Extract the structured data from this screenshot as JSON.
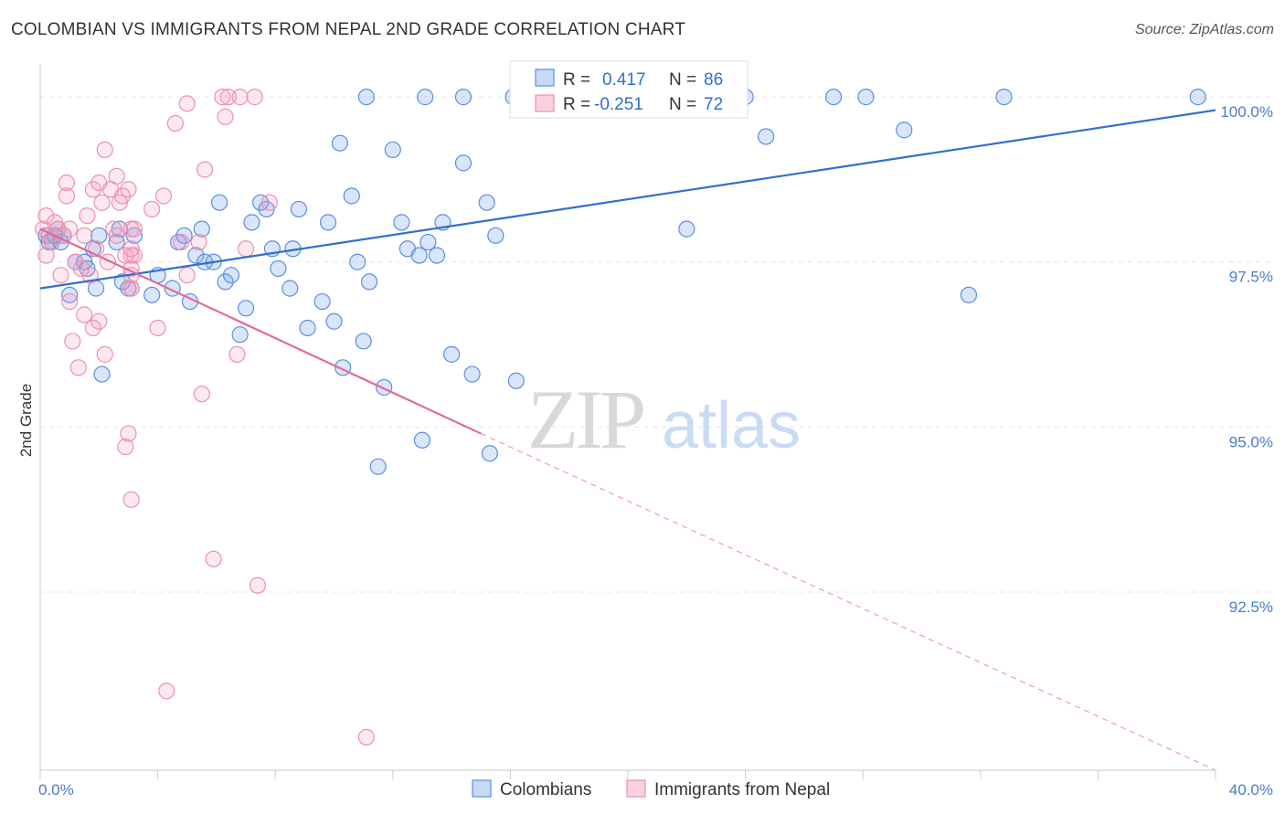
{
  "header": {
    "title": "COLOMBIAN VS IMMIGRANTS FROM NEPAL 2ND GRADE CORRELATION CHART",
    "source": "Source: ZipAtlas.com"
  },
  "watermark": {
    "zip": "ZIP",
    "atlas": "atlas"
  },
  "legend": {
    "r_label": "R =",
    "n_label": "N =",
    "series": [
      {
        "r": "0.417",
        "n": "86",
        "color": "#5b8fe0"
      },
      {
        "r": "-0.251",
        "n": "72",
        "color": "#ee8fb0"
      }
    ]
  },
  "bottom_legend": [
    {
      "label": "Colombians",
      "color": "#5b8fe0"
    },
    {
      "label": "Immigrants from Nepal",
      "color": "#ee8fb0"
    }
  ],
  "chart_data": {
    "type": "scatter",
    "xlabel": "",
    "ylabel": "2nd Grade",
    "xlim": [
      0,
      40
    ],
    "ylim": [
      89.8,
      100.5
    ],
    "x_tick_labels": [
      {
        "value": 0,
        "label": "0.0%"
      },
      {
        "value": 40,
        "label": "40.0%"
      }
    ],
    "y_tick_labels": [
      {
        "value": 100,
        "label": "100.0%"
      },
      {
        "value": 97.5,
        "label": "97.5%"
      },
      {
        "value": 95,
        "label": "95.0%"
      },
      {
        "value": 92.5,
        "label": "92.5%"
      }
    ],
    "grid": true,
    "series": [
      {
        "name": "Colombians",
        "color": "#5b8fe0",
        "trend": {
          "x": [
            0,
            40
          ],
          "y": [
            97.1,
            99.8
          ],
          "dashed_to": null
        },
        "points": [
          [
            0.2,
            97.9
          ],
          [
            0.3,
            97.8
          ],
          [
            0.4,
            97.8
          ],
          [
            0.5,
            97.9
          ],
          [
            0.6,
            98.0
          ],
          [
            0.7,
            97.8
          ],
          [
            0.8,
            97.9
          ],
          [
            1.0,
            97.0
          ],
          [
            1.2,
            97.5
          ],
          [
            1.5,
            97.5
          ],
          [
            1.6,
            97.4
          ],
          [
            1.8,
            97.7
          ],
          [
            1.9,
            97.1
          ],
          [
            2.0,
            97.9
          ],
          [
            2.1,
            95.8
          ],
          [
            2.6,
            97.8
          ],
          [
            2.7,
            98.0
          ],
          [
            2.8,
            97.2
          ],
          [
            3.0,
            97.1
          ],
          [
            3.2,
            97.9
          ],
          [
            3.8,
            97.0
          ],
          [
            4.0,
            97.3
          ],
          [
            4.5,
            97.1
          ],
          [
            4.7,
            97.8
          ],
          [
            4.9,
            97.9
          ],
          [
            5.1,
            96.9
          ],
          [
            5.3,
            97.6
          ],
          [
            5.5,
            98.0
          ],
          [
            5.6,
            97.5
          ],
          [
            5.9,
            97.5
          ],
          [
            6.1,
            98.4
          ],
          [
            6.3,
            97.2
          ],
          [
            6.5,
            97.3
          ],
          [
            6.8,
            96.4
          ],
          [
            7.0,
            96.8
          ],
          [
            7.2,
            98.1
          ],
          [
            7.5,
            98.4
          ],
          [
            7.7,
            98.3
          ],
          [
            7.9,
            97.7
          ],
          [
            8.1,
            97.4
          ],
          [
            8.5,
            97.1
          ],
          [
            8.6,
            97.7
          ],
          [
            8.8,
            98.3
          ],
          [
            9.1,
            96.5
          ],
          [
            9.6,
            96.9
          ],
          [
            9.8,
            98.1
          ],
          [
            10.0,
            96.6
          ],
          [
            10.2,
            99.3
          ],
          [
            10.3,
            95.9
          ],
          [
            10.6,
            98.5
          ],
          [
            10.8,
            97.5
          ],
          [
            11.0,
            96.3
          ],
          [
            11.2,
            97.2
          ],
          [
            11.5,
            94.4
          ],
          [
            11.7,
            95.6
          ],
          [
            12.0,
            99.2
          ],
          [
            11.1,
            100.0
          ],
          [
            12.3,
            98.1
          ],
          [
            12.5,
            97.7
          ],
          [
            12.9,
            97.6
          ],
          [
            13.0,
            94.8
          ],
          [
            13.2,
            97.8
          ],
          [
            13.5,
            97.6
          ],
          [
            13.7,
            98.1
          ],
          [
            14.0,
            96.1
          ],
          [
            13.1,
            100.0
          ],
          [
            14.4,
            99.0
          ],
          [
            14.7,
            95.8
          ],
          [
            15.2,
            98.4
          ],
          [
            15.3,
            94.6
          ],
          [
            15.5,
            97.9
          ],
          [
            14.4,
            100.0
          ],
          [
            16.2,
            95.7
          ],
          [
            16.1,
            100.0
          ],
          [
            17.6,
            100.0
          ],
          [
            18.5,
            100.0
          ],
          [
            22.0,
            98.0
          ],
          [
            24.0,
            100.0
          ],
          [
            24.7,
            99.4
          ],
          [
            27.0,
            100.0
          ],
          [
            28.1,
            100.0
          ],
          [
            29.4,
            99.5
          ],
          [
            31.6,
            97.0
          ],
          [
            32.8,
            100.0
          ],
          [
            39.4,
            100.0
          ],
          [
            21.8,
            100.0
          ]
        ]
      },
      {
        "name": "Immigrants from Nepal",
        "color": "#ee8fb0",
        "trend": {
          "x": [
            0,
            15
          ],
          "y": [
            98.0,
            94.9
          ],
          "dashed_to": [
            40,
            89.8
          ]
        },
        "points": [
          [
            0.1,
            98.0
          ],
          [
            0.2,
            97.6
          ],
          [
            0.2,
            98.2
          ],
          [
            0.3,
            97.9
          ],
          [
            0.4,
            97.8
          ],
          [
            0.5,
            98.1
          ],
          [
            0.6,
            98.0
          ],
          [
            0.7,
            97.3
          ],
          [
            0.8,
            97.9
          ],
          [
            0.9,
            98.5
          ],
          [
            0.9,
            98.7
          ],
          [
            1.0,
            96.9
          ],
          [
            1.1,
            96.3
          ],
          [
            1.2,
            97.5
          ],
          [
            1.3,
            95.9
          ],
          [
            1.4,
            97.4
          ],
          [
            1.5,
            96.7
          ],
          [
            1.5,
            97.9
          ],
          [
            1.6,
            98.2
          ],
          [
            1.7,
            97.3
          ],
          [
            1.8,
            96.5
          ],
          [
            1.8,
            98.6
          ],
          [
            1.9,
            97.7
          ],
          [
            2.0,
            98.7
          ],
          [
            2.0,
            96.6
          ],
          [
            2.1,
            98.4
          ],
          [
            2.2,
            99.2
          ],
          [
            2.2,
            96.1
          ],
          [
            2.3,
            97.5
          ],
          [
            2.4,
            98.6
          ],
          [
            2.5,
            98.0
          ],
          [
            2.6,
            98.8
          ],
          [
            2.6,
            97.9
          ],
          [
            2.7,
            98.4
          ],
          [
            2.8,
            98.5
          ],
          [
            2.9,
            97.6
          ],
          [
            2.9,
            94.7
          ],
          [
            3.0,
            98.6
          ],
          [
            3.0,
            94.9
          ],
          [
            3.1,
            97.1
          ],
          [
            3.2,
            97.6
          ],
          [
            3.1,
            97.6
          ],
          [
            3.1,
            97.1
          ],
          [
            3.1,
            97.4
          ],
          [
            3.1,
            97.3
          ],
          [
            3.1,
            93.9
          ],
          [
            3.1,
            98.0
          ],
          [
            3.1,
            97.7
          ],
          [
            3.2,
            98.0
          ],
          [
            3.8,
            98.3
          ],
          [
            4.0,
            96.5
          ],
          [
            4.2,
            98.5
          ],
          [
            4.3,
            91.0
          ],
          [
            4.6,
            99.6
          ],
          [
            4.8,
            97.8
          ],
          [
            5.0,
            97.3
          ],
          [
            5.0,
            99.9
          ],
          [
            5.4,
            97.8
          ],
          [
            5.5,
            95.5
          ],
          [
            5.6,
            98.9
          ],
          [
            5.9,
            93.0
          ],
          [
            6.2,
            100.0
          ],
          [
            6.3,
            99.7
          ],
          [
            6.4,
            100.0
          ],
          [
            6.7,
            96.1
          ],
          [
            6.8,
            100.0
          ],
          [
            7.0,
            97.7
          ],
          [
            7.3,
            100.0
          ],
          [
            7.4,
            92.6
          ],
          [
            7.8,
            98.4
          ],
          [
            11.1,
            90.3
          ],
          [
            1.0,
            98.0
          ]
        ]
      }
    ]
  }
}
